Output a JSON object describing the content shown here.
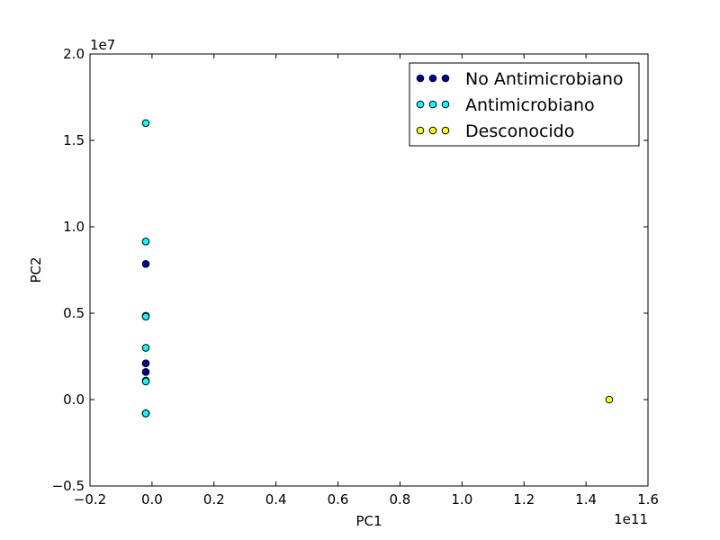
{
  "chart_data": {
    "type": "scatter",
    "title": "",
    "xlabel": "PC1",
    "ylabel": "PC2",
    "x_offset_label": "1e11",
    "y_offset_label": "1e7",
    "xlim": [
      -0.2,
      1.6
    ],
    "ylim": [
      -0.5,
      2.0
    ],
    "x_scale_factor": 100000000000,
    "y_scale_factor": 10000000,
    "x_ticks": [
      -0.2,
      0.0,
      0.2,
      0.4,
      0.6,
      0.8,
      1.0,
      1.2,
      1.4,
      1.6
    ],
    "x_tick_labels": [
      "−0.2",
      "0.0",
      "0.2",
      "0.4",
      "0.6",
      "0.8",
      "1.0",
      "1.2",
      "1.4",
      "1.6"
    ],
    "y_ticks": [
      -0.5,
      0.0,
      0.5,
      1.0,
      1.5,
      2.0
    ],
    "y_tick_labels": [
      "−0.5",
      "0.0",
      "0.5",
      "1.0",
      "1.5",
      "2.0"
    ],
    "grid": false,
    "legend_position": "top-right",
    "series": [
      {
        "name": "No Antimicrobiano",
        "color": "#0000aa",
        "points": [
          [
            -0.02,
            0.785
          ],
          [
            -0.02,
            0.485
          ],
          [
            -0.02,
            0.21
          ],
          [
            -0.02,
            0.16
          ],
          [
            -0.02,
            0.11
          ],
          [
            -0.02,
            -0.08
          ],
          [
            -0.02,
            -0.08
          ]
        ]
      },
      {
        "name": "Antimicrobiano",
        "color": "#00ffff",
        "points": [
          [
            -0.02,
            1.6
          ],
          [
            -0.02,
            0.915
          ],
          [
            -0.02,
            0.48
          ],
          [
            -0.02,
            0.3
          ],
          [
            -0.02,
            0.105
          ],
          [
            -0.02,
            -0.08
          ]
        ]
      },
      {
        "name": "Desconocido",
        "color": "#ffff00",
        "points": [
          [
            1.475,
            0.0
          ]
        ]
      }
    ]
  }
}
